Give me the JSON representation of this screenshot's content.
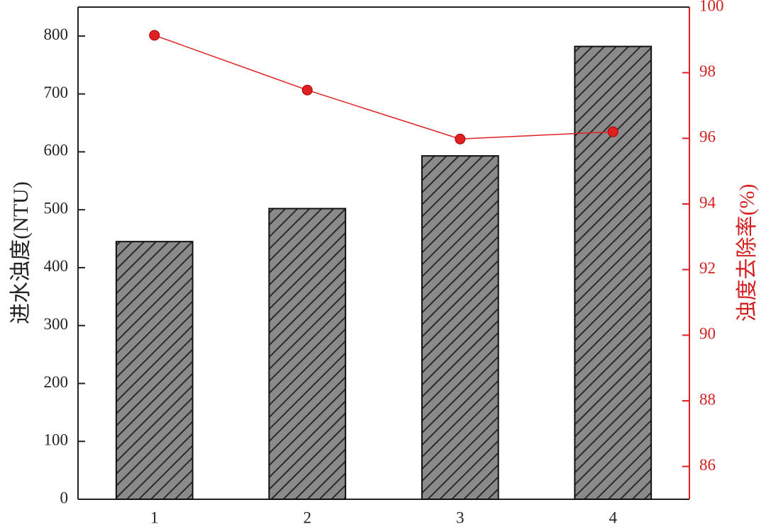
{
  "chart_data": {
    "type": "bar",
    "categories": [
      "1",
      "2",
      "3",
      "4"
    ],
    "series": [
      {
        "type": "bar",
        "color": "#2a2a2a",
        "values": [
          445,
          502,
          593,
          782
        ]
      },
      {
        "type": "line",
        "axis": "y2",
        "color": "#e02020",
        "values": [
          99.14,
          97.47,
          95.98,
          96.2
        ]
      }
    ],
    "ylabel": "进水浊度(NTU)",
    "y2label": "浊度去除率(%)",
    "ylim": [
      0,
      850
    ],
    "yticks": [
      0,
      100,
      200,
      300,
      400,
      500,
      600,
      700,
      800
    ],
    "y2lim": [
      85,
      100
    ],
    "y2ticks": [
      86,
      88,
      90,
      92,
      94,
      96,
      98,
      100
    ]
  }
}
